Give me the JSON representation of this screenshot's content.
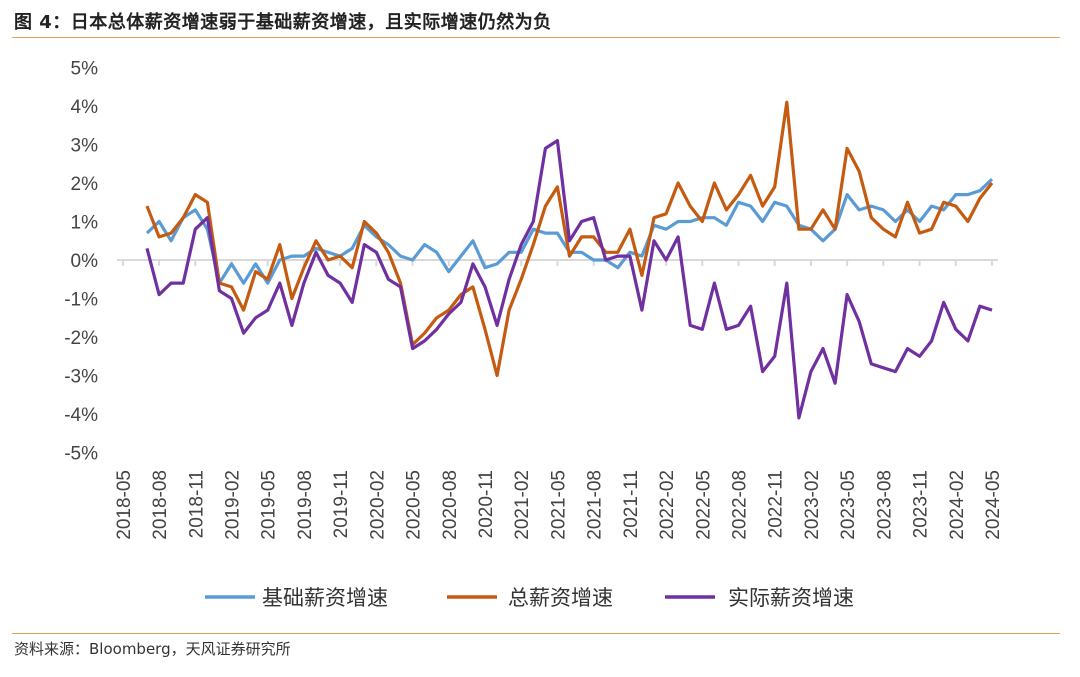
{
  "title": "图 4：日本总体薪资增速弱于基础薪资增速，且实际增速仍然为负",
  "source": "资料来源：Bloomberg，天风证券研究所",
  "chart_data": {
    "type": "line",
    "title": "图 4：日本总体薪资增速弱于基础薪资增速，且实际增速仍然为负",
    "xlabel": "",
    "ylabel": "",
    "ylim": [
      -5,
      5
    ],
    "yticks": [
      "5%",
      "4%",
      "3%",
      "2%",
      "1%",
      "0%",
      "-1%",
      "-2%",
      "-3%",
      "-4%",
      "-5%"
    ],
    "ytick_values": [
      5,
      4,
      3,
      2,
      1,
      0,
      -1,
      -2,
      -3,
      -4,
      -5
    ],
    "x_start": "2018-07",
    "x_end": "2024-05",
    "frequency": "monthly",
    "xticks": [
      "2018-05",
      "2018-08",
      "2018-11",
      "2019-02",
      "2019-05",
      "2019-08",
      "2019-11",
      "2020-02",
      "2020-05",
      "2020-08",
      "2020-11",
      "2021-02",
      "2021-05",
      "2021-08",
      "2021-11",
      "2022-02",
      "2022-05",
      "2022-08",
      "2022-11",
      "2023-02",
      "2023-05",
      "2023-08",
      "2023-11",
      "2024-02",
      "2024-05"
    ],
    "legend_position": "bottom",
    "grid": false,
    "series": [
      {
        "name": "基础薪资增速",
        "color": "#5b9bd5",
        "values": [
          0.7,
          1.0,
          0.5,
          1.1,
          1.3,
          0.8,
          -0.6,
          -0.1,
          -0.6,
          -0.1,
          -0.6,
          0.0,
          0.1,
          0.1,
          0.3,
          0.2,
          0.1,
          0.3,
          0.9,
          0.6,
          0.4,
          0.1,
          0.0,
          0.4,
          0.2,
          -0.3,
          0.1,
          0.5,
          -0.2,
          -0.1,
          0.2,
          0.2,
          0.8,
          0.7,
          0.7,
          0.2,
          0.2,
          0.0,
          0.0,
          -0.2,
          0.2,
          0.1,
          0.9,
          0.8,
          1.0,
          1.0,
          1.1,
          1.1,
          0.9,
          1.5,
          1.4,
          1.0,
          1.5,
          1.4,
          0.9,
          0.8,
          0.5,
          0.8,
          1.7,
          1.3,
          1.4,
          1.3,
          1.0,
          1.3,
          1.0,
          1.4,
          1.3,
          1.7,
          1.7,
          1.8,
          2.1
        ]
      },
      {
        "name": "总薪资增速",
        "color": "#c55a11",
        "values": [
          1.4,
          0.6,
          0.7,
          1.1,
          1.7,
          1.5,
          -0.6,
          -0.7,
          -1.3,
          -0.3,
          -0.5,
          0.4,
          -1.0,
          -0.2,
          0.5,
          0.0,
          0.1,
          -0.2,
          1.0,
          0.7,
          0.2,
          -0.6,
          -2.2,
          -1.9,
          -1.5,
          -1.3,
          -0.9,
          -0.7,
          -1.8,
          -3.0,
          -1.3,
          -0.5,
          0.4,
          1.4,
          1.9,
          0.1,
          0.6,
          0.6,
          0.2,
          0.2,
          0.8,
          -0.4,
          1.1,
          1.2,
          2.0,
          1.4,
          1.0,
          2.0,
          1.3,
          1.7,
          2.2,
          1.4,
          1.9,
          4.1,
          0.8,
          0.8,
          1.3,
          0.8,
          2.9,
          2.3,
          1.1,
          0.8,
          0.6,
          1.5,
          0.7,
          0.8,
          1.5,
          1.4,
          1.0,
          1.6,
          2.0
        ]
      },
      {
        "name": "实际薪资增速",
        "color": "#7030a0",
        "values": [
          0.3,
          -0.9,
          -0.6,
          -0.6,
          0.8,
          1.1,
          -0.8,
          -1.0,
          -1.9,
          -1.5,
          -1.3,
          -0.6,
          -1.7,
          -0.6,
          0.2,
          -0.4,
          -0.6,
          -1.1,
          0.4,
          0.2,
          -0.5,
          -0.7,
          -2.3,
          -2.1,
          -1.8,
          -1.4,
          -1.1,
          -0.1,
          -0.7,
          -1.7,
          -0.5,
          0.4,
          1.0,
          2.9,
          3.1,
          0.5,
          1.0,
          1.1,
          0.0,
          0.1,
          0.1,
          -1.3,
          0.5,
          0.0,
          0.6,
          -1.7,
          -1.8,
          -0.6,
          -1.8,
          -1.7,
          -1.2,
          -2.9,
          -2.5,
          -0.6,
          -4.1,
          -2.9,
          -2.3,
          -3.2,
          -0.9,
          -1.6,
          -2.7,
          -2.8,
          -2.9,
          -2.3,
          -2.5,
          -2.1,
          -1.1,
          -1.8,
          -2.1,
          -1.2,
          -1.3
        ]
      }
    ]
  }
}
